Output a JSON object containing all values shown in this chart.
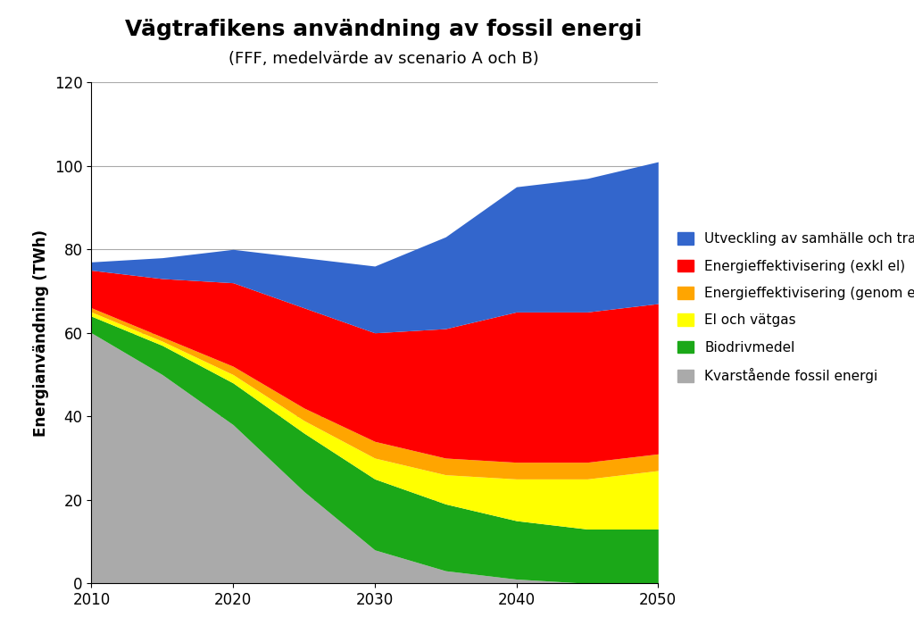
{
  "title": "Vägtrafikens användning av fossil energi",
  "subtitle": "(FFF, medelvärde av scenario A och B)",
  "ylabel": "Energianvändning (TWh)",
  "years": [
    2010,
    2015,
    2020,
    2025,
    2030,
    2035,
    2040,
    2045,
    2050
  ],
  "ylim": [
    0,
    120
  ],
  "yticks": [
    0,
    20,
    40,
    60,
    80,
    100,
    120
  ],
  "series": [
    {
      "label": "Kvarstående fossil energi",
      "color": "#AAAAAA",
      "values": [
        60,
        50,
        38,
        22,
        8,
        3,
        1,
        0,
        0
      ]
    },
    {
      "label": "Biodrivmedel",
      "color": "#1BA818",
      "values": [
        4,
        7,
        10,
        14,
        17,
        16,
        14,
        13,
        13
      ]
    },
    {
      "label": "El och vätgas",
      "color": "#FFFF00",
      "values": [
        1,
        1,
        2,
        3,
        5,
        7,
        10,
        12,
        14
      ]
    },
    {
      "label": "Energieffektivisering (genom el)",
      "color": "#FFA500",
      "values": [
        1,
        1,
        2,
        3,
        4,
        4,
        4,
        4,
        4
      ]
    },
    {
      "label": "Energieffektivisering (exkl el)",
      "color": "#FF0000",
      "values": [
        9,
        14,
        20,
        24,
        26,
        31,
        36,
        36,
        36
      ]
    },
    {
      "label": "Utveckling av samhälle och transportsystem",
      "color": "#3366CC",
      "values": [
        2,
        5,
        8,
        12,
        16,
        22,
        30,
        32,
        34
      ]
    }
  ],
  "background_color": "#FFFFFF",
  "grid_color": "#AAAAAA",
  "title_fontsize": 18,
  "subtitle_fontsize": 13,
  "axis_label_fontsize": 12,
  "tick_fontsize": 12,
  "legend_fontsize": 11
}
